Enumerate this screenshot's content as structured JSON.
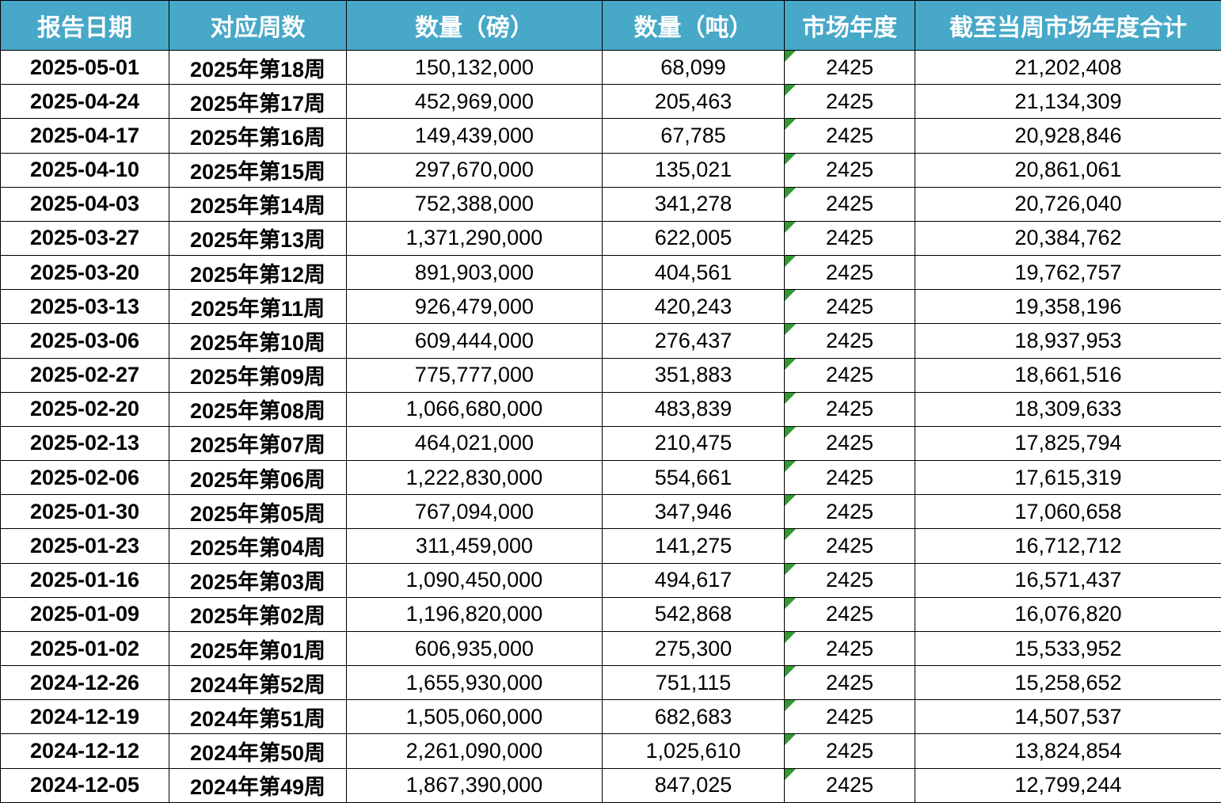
{
  "table": {
    "columns": [
      {
        "key": "report_date",
        "label": "报告日期"
      },
      {
        "key": "week",
        "label": "对应周数"
      },
      {
        "key": "qty_lbs",
        "label": "数量（磅）"
      },
      {
        "key": "qty_tons",
        "label": "数量（吨）"
      },
      {
        "key": "market_year",
        "label": "市场年度"
      },
      {
        "key": "ytd_total",
        "label": "截至当周市场年度合计"
      }
    ],
    "rows": [
      [
        "2025-05-01",
        "2025年第18周",
        "150,132,000",
        "68,099",
        "2425",
        "21,202,408"
      ],
      [
        "2025-04-24",
        "2025年第17周",
        "452,969,000",
        "205,463",
        "2425",
        "21,134,309"
      ],
      [
        "2025-04-17",
        "2025年第16周",
        "149,439,000",
        "67,785",
        "2425",
        "20,928,846"
      ],
      [
        "2025-04-10",
        "2025年第15周",
        "297,670,000",
        "135,021",
        "2425",
        "20,861,061"
      ],
      [
        "2025-04-03",
        "2025年第14周",
        "752,388,000",
        "341,278",
        "2425",
        "20,726,040"
      ],
      [
        "2025-03-27",
        "2025年第13周",
        "1,371,290,000",
        "622,005",
        "2425",
        "20,384,762"
      ],
      [
        "2025-03-20",
        "2025年第12周",
        "891,903,000",
        "404,561",
        "2425",
        "19,762,757"
      ],
      [
        "2025-03-13",
        "2025年第11周",
        "926,479,000",
        "420,243",
        "2425",
        "19,358,196"
      ],
      [
        "2025-03-06",
        "2025年第10周",
        "609,444,000",
        "276,437",
        "2425",
        "18,937,953"
      ],
      [
        "2025-02-27",
        "2025年第09周",
        "775,777,000",
        "351,883",
        "2425",
        "18,661,516"
      ],
      [
        "2025-02-20",
        "2025年第08周",
        "1,066,680,000",
        "483,839",
        "2425",
        "18,309,633"
      ],
      [
        "2025-02-13",
        "2025年第07周",
        "464,021,000",
        "210,475",
        "2425",
        "17,825,794"
      ],
      [
        "2025-02-06",
        "2025年第06周",
        "1,222,830,000",
        "554,661",
        "2425",
        "17,615,319"
      ],
      [
        "2025-01-30",
        "2025年第05周",
        "767,094,000",
        "347,946",
        "2425",
        "17,060,658"
      ],
      [
        "2025-01-23",
        "2025年第04周",
        "311,459,000",
        "141,275",
        "2425",
        "16,712,712"
      ],
      [
        "2025-01-16",
        "2025年第03周",
        "1,090,450,000",
        "494,617",
        "2425",
        "16,571,437"
      ],
      [
        "2025-01-09",
        "2025年第02周",
        "1,196,820,000",
        "542,868",
        "2425",
        "16,076,820"
      ],
      [
        "2025-01-02",
        "2025年第01周",
        "606,935,000",
        "275,300",
        "2425",
        "15,533,952"
      ],
      [
        "2024-12-26",
        "2024年第52周",
        "1,655,930,000",
        "751,115",
        "2425",
        "15,258,652"
      ],
      [
        "2024-12-19",
        "2024年第51周",
        "1,505,060,000",
        "682,683",
        "2425",
        "14,507,537"
      ],
      [
        "2024-12-12",
        "2024年第50周",
        "2,261,090,000",
        "1,025,610",
        "2425",
        "13,824,854"
      ],
      [
        "2024-12-05",
        "2024年第49周",
        "1,867,390,000",
        "847,025",
        "2425",
        "12,799,244"
      ]
    ]
  },
  "icons": {
    "market_year_flag": "green-triangle"
  },
  "colors": {
    "header_bg": "#47a8c8",
    "header_text": "#ffffff",
    "grid_border": "#000000",
    "flag_green": "#339933",
    "cell_bg": "#ffffff",
    "cell_text": "#000000"
  }
}
